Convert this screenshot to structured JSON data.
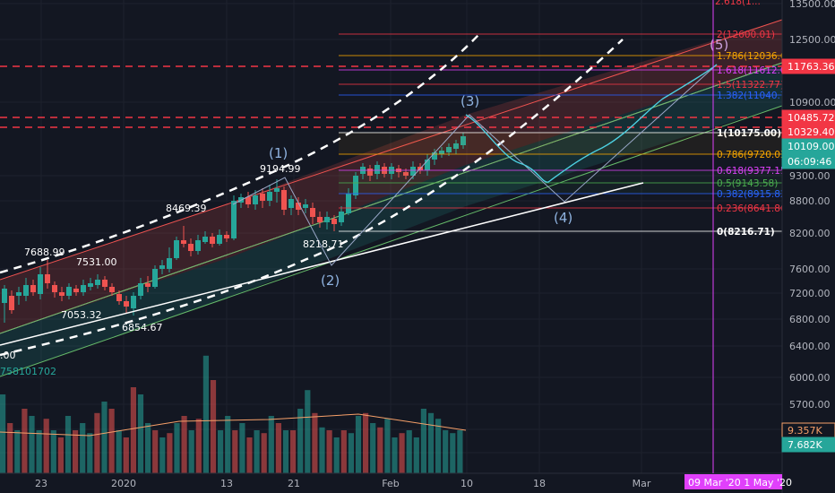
{
  "chart_data": {
    "type": "candlestick",
    "title": "",
    "price_ticks": [
      "13500.00",
      "12500.00",
      "10900.00",
      "9300.00",
      "8800.00",
      "8200.00",
      "7600.00",
      "7200.00",
      "6800.00",
      "6400.00",
      "6000.00",
      "5700.00"
    ],
    "time_ticks": [
      "23",
      "2020",
      "13",
      "21",
      "Feb",
      "10",
      "18",
      "Mar"
    ],
    "price_annotations": [
      "9194.99",
      "8469.39",
      "7688.99",
      "7531.00",
      "7053.32",
      "6854.67",
      "8218.71",
      ".00"
    ],
    "waves": [
      "(1)",
      "(2)",
      "(3)",
      "(4)",
      "(5)"
    ],
    "fib_levels": [
      {
        "label": "2(12600.01)",
        "color": "#f23645",
        "value": 12600.01
      },
      {
        "label": "1.786(12036.6",
        "color": "#f7a600",
        "value": 12036.6
      },
      {
        "label": "1.618(11612.0",
        "color": "#e040fb",
        "value": 11612.0
      },
      {
        "label": "1.5(11322.77)",
        "color": "#f23645",
        "value": 11322.77
      },
      {
        "label": "1.382(11040.7",
        "color": "#2962ff",
        "value": 11040.7
      },
      {
        "label": "1(10175.00)",
        "color": "#ffffff",
        "value": 10175.0
      },
      {
        "label": "0.786(9720.03",
        "color": "#f7a600",
        "value": 9720.03
      },
      {
        "label": "0.618(9377.15",
        "color": "#e040fb",
        "value": 9377.15
      },
      {
        "label": "0.5(9143.58)",
        "color": "#4caf50",
        "value": 9143.58
      },
      {
        "label": "0.382(8915.82",
        "color": "#2962ff",
        "value": 8915.82
      },
      {
        "label": "0.236(8641.86",
        "color": "#f23645",
        "value": 8641.86
      },
      {
        "label": "0(8216.71)",
        "color": "#ffffff",
        "value": 8216.71
      }
    ],
    "price_tags": [
      {
        "text": "11763.36",
        "color": "#f23645"
      },
      {
        "text": "10485.72",
        "color": "#f23645"
      },
      {
        "text": "10329.40",
        "color": "#f23645"
      },
      {
        "text": "10109.00",
        "color": "#26a69a"
      },
      {
        "text": "06:09:46",
        "color": "#26a69a"
      },
      {
        "text": "9.357K",
        "color": "#f7a069"
      },
      {
        "text": "7.682K",
        "color": "#26a69a"
      }
    ],
    "volume_label": "758101702",
    "date_range": "09 Mar '20 1 May '20",
    "top_right_fib_partial": "2.618(1..."
  },
  "colors": {
    "up": "#26a69a",
    "down": "#ef5350",
    "background": "#131722",
    "grid": "#1e222d",
    "magenta": "#e040fb",
    "projection": "#4dd0e1"
  }
}
